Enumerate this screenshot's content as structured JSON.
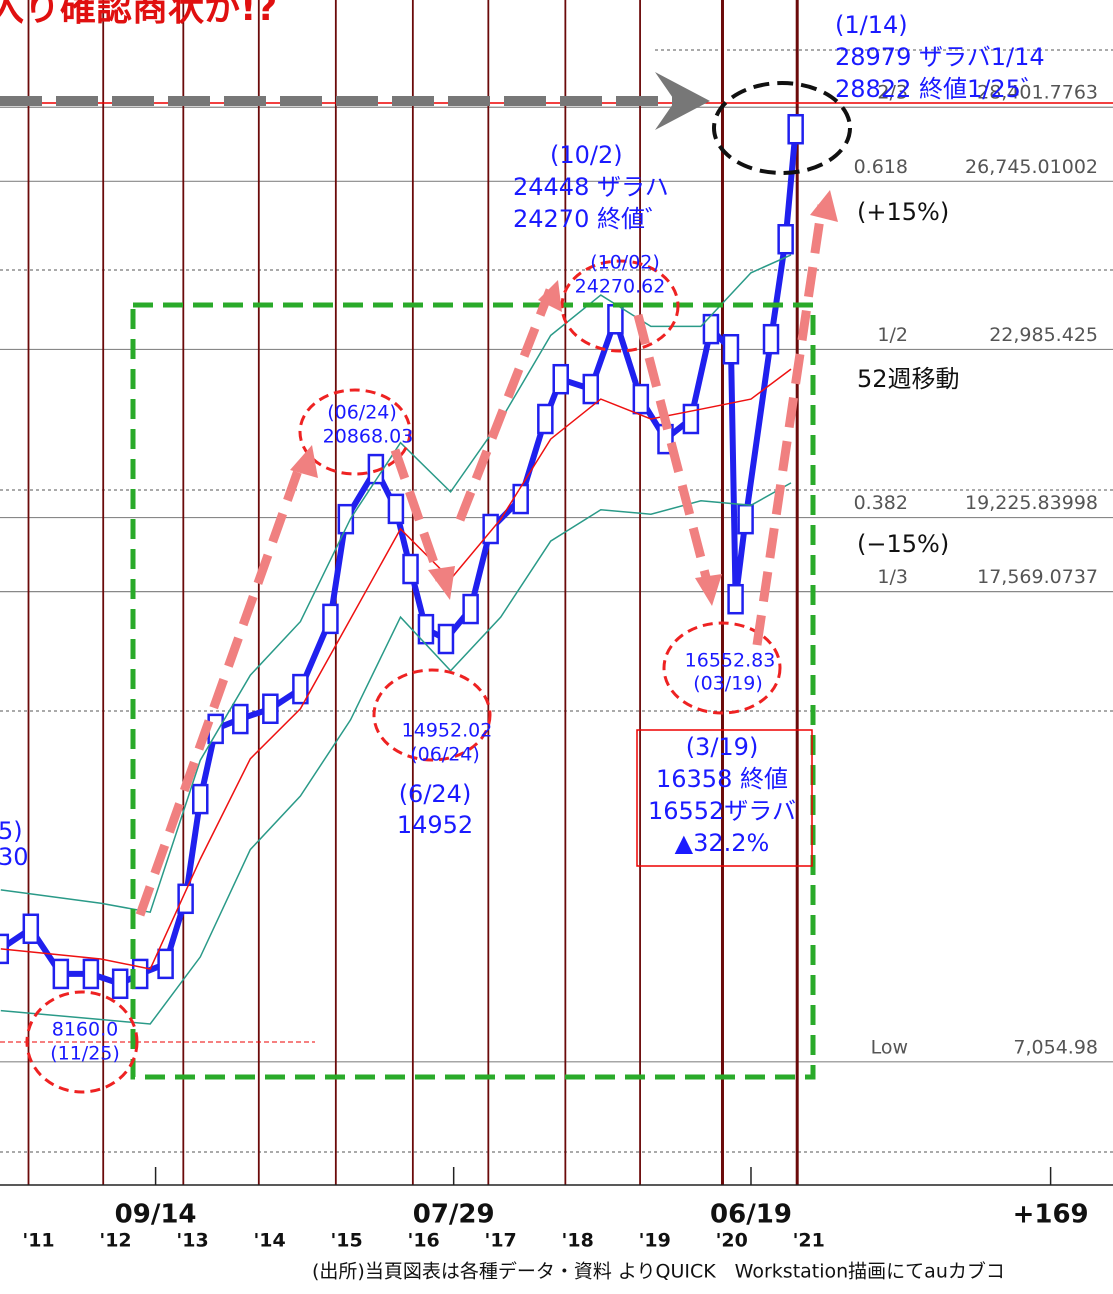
{
  "chart_data": {
    "type": "line",
    "title": "入り確認商状か!?",
    "xlim": [
      2011.0,
      2025.45
    ],
    "ylim": [
      4300,
      30800
    ],
    "xticks": [
      {
        "value": 2013.02,
        "label": "09/14"
      },
      {
        "value": 2016.89,
        "label": "07/29"
      },
      {
        "value": 2020.75,
        "label": "06/19"
      },
      {
        "value": 2024.64,
        "label": "+169"
      }
    ],
    "year_labels": [
      {
        "value": 2011.5,
        "label": "'11"
      },
      {
        "value": 2012.5,
        "label": "'12"
      },
      {
        "value": 2013.5,
        "label": "'13"
      },
      {
        "value": 2014.5,
        "label": "'14"
      },
      {
        "value": 2015.5,
        "label": "'15"
      },
      {
        "value": 2016.5,
        "label": "'16"
      },
      {
        "value": 2017.5,
        "label": "'17"
      },
      {
        "value": 2018.5,
        "label": "'18"
      },
      {
        "value": 2019.5,
        "label": "'19"
      },
      {
        "value": 2020.5,
        "label": "'20"
      },
      {
        "value": 2021.5,
        "label": "'21"
      }
    ],
    "cycle_lines": [
      2011.37,
      2012.34,
      2013.38,
      2014.36,
      2015.36,
      2016.36,
      2017.34,
      2018.34,
      2019.31,
      2020.38,
      2021.35
    ],
    "levels": [
      {
        "name": "2/3",
        "value": 28401.7763,
        "value_label": "28,401.7763"
      },
      {
        "name": "0.618",
        "value": 26745.01002,
        "value_label": "26,745.01002"
      },
      {
        "name": "1/2",
        "value": 22985.425,
        "value_label": "22,985.425"
      },
      {
        "name": "0.382",
        "value": 19225.83998,
        "value_label": "19,225.83998"
      },
      {
        "name": "1/3",
        "value": 17569.0737,
        "value_label": "17,569.0737"
      },
      {
        "name": "Low",
        "value": 7054.98,
        "value_label": "7,054.98"
      }
    ],
    "series": [
      {
        "color": "#2020ee",
        "x": [
          2011.01,
          2011.4,
          2011.79,
          2012.18,
          2012.56,
          2012.82,
          2013.15,
          2013.41,
          2013.6,
          2013.8,
          2014.12,
          2014.51,
          2014.9,
          2015.29,
          2015.49,
          2015.88,
          2016.14,
          2016.33,
          2016.53,
          2016.79,
          2017.11,
          2017.37,
          2017.76,
          2018.08,
          2018.28,
          2018.67,
          2018.99,
          2019.32,
          2019.64,
          2019.97,
          2020.23,
          2020.49,
          2020.55,
          2020.68,
          2021.01,
          2021.2,
          2021.33
        ],
        "values": [
          9580,
          10030,
          9020,
          9020,
          8800,
          9020,
          9245,
          10700,
          12930,
          14500,
          14720,
          14950,
          15390,
          16960,
          19190,
          20310,
          19420,
          18075,
          16730,
          16510,
          17180,
          18970,
          19640,
          21430,
          22320,
          22100,
          23660,
          21875,
          20980,
          21430,
          23440,
          22990,
          17400,
          19190,
          23215,
          25450,
          27910
        ]
      },
      {
        "color": "#ee1111",
        "x": [
          2011.01,
          2012.31,
          2012.95,
          2013.6,
          2014.25,
          2014.9,
          2015.55,
          2016.2,
          2016.85,
          2017.5,
          2018.15,
          2018.8,
          2019.45,
          2020.1,
          2020.75,
          2021.27
        ],
        "values": [
          9580,
          9355,
          9130,
          11590,
          13830,
          14950,
          16960,
          18970,
          17850,
          19190,
          20980,
          21875,
          21430,
          21650,
          21875,
          22545
        ]
      },
      {
        "color": "#2a9a88",
        "x": [
          2011.01,
          2012.31,
          2012.95,
          2013.6,
          2014.25,
          2014.9,
          2015.55,
          2016.2,
          2016.85,
          2017.5,
          2018.15,
          2018.8,
          2019.45,
          2020.1,
          2020.75,
          2021.27
        ],
        "values": [
          10900,
          10600,
          10400,
          13800,
          15700,
          16900,
          19200,
          20900,
          19800,
          21400,
          23300,
          24200,
          23500,
          23500,
          24700,
          25100
        ]
      },
      {
        "color": "#2a9a88",
        "x": [
          2011.01,
          2012.31,
          2012.95,
          2013.6,
          2014.25,
          2014.9,
          2015.55,
          2016.2,
          2016.85,
          2017.5,
          2018.15,
          2018.8,
          2019.45,
          2020.1,
          2020.75,
          2021.27
        ],
        "values": [
          8200,
          8000,
          7900,
          9400,
          11800,
          13000,
          14700,
          17000,
          15800,
          17000,
          18700,
          19400,
          19300,
          19600,
          19500,
          20000
        ]
      }
    ],
    "annotations": [
      "(1/14)",
      "28979 ザラバ1/14",
      "28822 終値1/25゛",
      "(10/2)",
      "24448 ザラハ",
      "24270 終値゛",
      "(10/02)",
      "24270.62",
      "(06/24)",
      "20868.03",
      "14952.02",
      "(06/24)",
      "16552.83",
      "(03/19)",
      "8160.0",
      "(11/25)",
      "(6/24)",
      "14952",
      "(3/19)",
      "16358 終値",
      "16552ザラバ",
      "▲32.2%",
      "(+15%)",
      "(−15%)",
      "52週移動",
      "5)",
      "30"
    ],
    "footer": "(出所)当頁図表は各種データ・資料 よりQUICK　Workstation描画にてauカブコ"
  }
}
